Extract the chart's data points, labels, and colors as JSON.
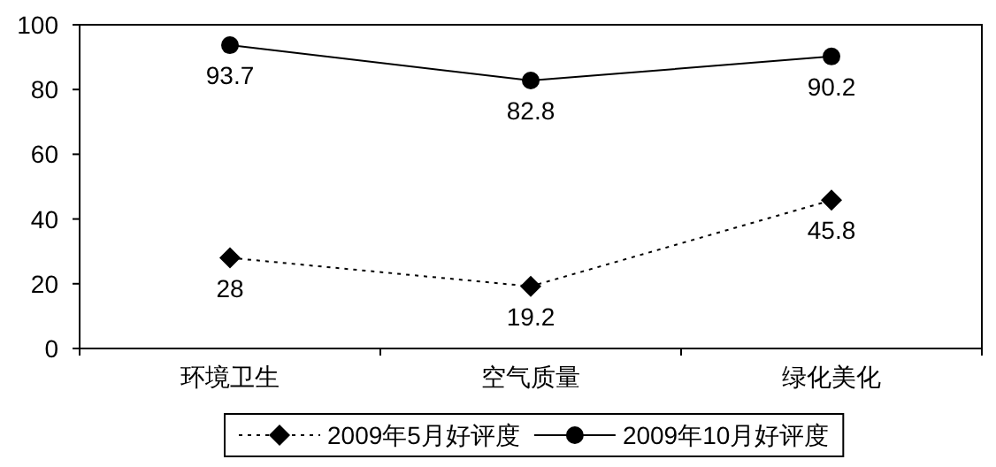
{
  "chart_data": {
    "type": "line",
    "categories": [
      "环境卫生",
      "空气质量",
      "绿化美化"
    ],
    "series": [
      {
        "name": "2009年5月好评度",
        "color": "#000000",
        "values": [
          28,
          19.2,
          45.8
        ],
        "marker": "diamond",
        "line_style": "dotted"
      },
      {
        "name": "2009年10月好评度",
        "color": "#000000",
        "values": [
          93.7,
          82.8,
          90.2
        ],
        "marker": "circle",
        "line_style": "solid"
      }
    ],
    "ylim": [
      0,
      100
    ],
    "yticks": [
      0,
      20,
      40,
      60,
      80,
      100
    ],
    "data_labels": true,
    "legend": "bottom",
    "grid": false
  }
}
